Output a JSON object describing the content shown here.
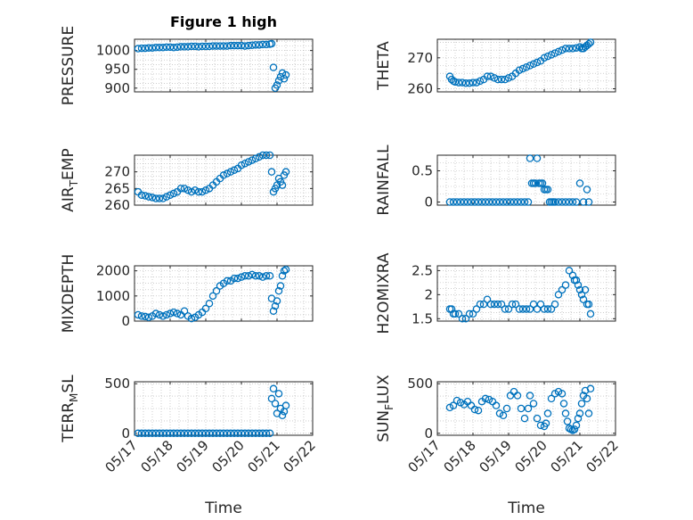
{
  "figure": {
    "title": "Figure 1 high",
    "marker_color": "#0072BD",
    "axis_color": "#262626",
    "grid_color": "#b0b0b0",
    "time_tick_labels": [
      "05/17",
      "05/18",
      "05/19",
      "05/20",
      "05/21",
      "05/22"
    ]
  },
  "chart_data": [
    {
      "type": "scatter",
      "title": "Figure 1 high",
      "ylabel": "PRESSURE",
      "xlabel": "",
      "xlim": [
        17,
        22
      ],
      "ylim": [
        890,
        1030
      ],
      "yticks": [
        900,
        950,
        1000
      ],
      "ytick_labels": [
        "900",
        "950",
        "1000"
      ],
      "grid": true,
      "x": [
        17.1,
        17.2,
        17.3,
        17.4,
        17.5,
        17.6,
        17.7,
        17.8,
        17.9,
        18.0,
        18.1,
        18.2,
        18.3,
        18.4,
        18.5,
        18.6,
        18.7,
        18.8,
        18.9,
        19.0,
        19.1,
        19.2,
        19.3,
        19.4,
        19.5,
        19.6,
        19.7,
        19.8,
        19.9,
        20.0,
        20.1,
        20.2,
        20.3,
        20.4,
        20.5,
        20.6,
        20.7,
        20.8,
        20.85,
        20.9,
        20.95,
        21.0,
        21.05,
        21.1,
        21.15,
        21.2,
        21.25
      ],
      "y": [
        1005,
        1006,
        1006,
        1007,
        1007,
        1008,
        1008,
        1008,
        1009,
        1009,
        1008,
        1009,
        1010,
        1010,
        1010,
        1011,
        1011,
        1010,
        1011,
        1011,
        1011,
        1012,
        1012,
        1012,
        1012,
        1012,
        1013,
        1013,
        1013,
        1013,
        1012,
        1013,
        1014,
        1015,
        1015,
        1016,
        1016,
        1017,
        1018,
        955,
        900,
        908,
        920,
        930,
        940,
        925,
        935
      ]
    },
    {
      "type": "scatter",
      "ylabel": "THETA",
      "xlabel": "",
      "xlim": [
        17,
        22
      ],
      "ylim": [
        259,
        276
      ],
      "yticks": [
        260,
        270
      ],
      "ytick_labels": [
        "260",
        "270"
      ],
      "grid": true,
      "x": [
        17.35,
        17.4,
        17.45,
        17.5,
        17.6,
        17.7,
        17.8,
        17.9,
        18.0,
        18.1,
        18.2,
        18.3,
        18.4,
        18.5,
        18.6,
        18.7,
        18.8,
        18.9,
        19.0,
        19.1,
        19.2,
        19.3,
        19.4,
        19.5,
        19.6,
        19.7,
        19.8,
        19.9,
        20.0,
        20.1,
        20.2,
        20.3,
        20.4,
        20.5,
        20.6,
        20.7,
        20.8,
        20.9,
        21.0,
        21.05,
        21.1,
        21.15,
        21.2,
        21.25,
        21.3
      ],
      "y": [
        264,
        263,
        262.5,
        262.2,
        262,
        262,
        261.8,
        261.8,
        262,
        262,
        262.5,
        263,
        264,
        264,
        263.5,
        263,
        263,
        263,
        263.5,
        264,
        265,
        266,
        266.5,
        267,
        267.5,
        268,
        268.5,
        269,
        270,
        270.5,
        271,
        271.5,
        272,
        272.5,
        273,
        273,
        273,
        273.2,
        273.5,
        273,
        273,
        273.5,
        274,
        274.5,
        275
      ]
    },
    {
      "type": "scatter",
      "ylabel": "AIR_TEMP",
      "xlabel": "",
      "xlim": [
        17,
        22
      ],
      "ylim": [
        260,
        275
      ],
      "yticks": [
        260,
        265,
        270
      ],
      "ytick_labels": [
        "260",
        "265",
        "270"
      ],
      "grid": true,
      "x": [
        17.1,
        17.2,
        17.3,
        17.4,
        17.5,
        17.6,
        17.7,
        17.8,
        17.9,
        18.0,
        18.1,
        18.2,
        18.3,
        18.4,
        18.5,
        18.6,
        18.7,
        18.8,
        18.9,
        19.0,
        19.1,
        19.2,
        19.3,
        19.4,
        19.5,
        19.6,
        19.7,
        19.8,
        19.9,
        20.0,
        20.1,
        20.2,
        20.3,
        20.4,
        20.5,
        20.6,
        20.7,
        20.8,
        20.85,
        20.9,
        20.95,
        21.0,
        21.05,
        21.1,
        21.15,
        21.2,
        21.25
      ],
      "y": [
        264,
        263,
        262.8,
        262.5,
        262.3,
        262,
        262,
        262,
        262.5,
        263,
        263.5,
        264,
        265,
        265,
        264.5,
        264,
        264.5,
        264,
        264,
        264.5,
        265,
        266,
        267,
        268,
        269,
        269.5,
        270,
        270.5,
        271,
        272,
        272.5,
        273,
        273.5,
        274,
        274.5,
        275,
        275,
        275,
        270,
        264,
        265,
        266,
        268,
        267,
        266,
        269,
        270
      ]
    },
    {
      "type": "scatter",
      "ylabel": "RAINFALL",
      "xlabel": "",
      "xlim": [
        17,
        22
      ],
      "ylim": [
        -0.05,
        0.75
      ],
      "yticks": [
        0,
        0.5
      ],
      "ytick_labels": [
        "0",
        "0.5"
      ],
      "grid": true,
      "x": [
        17.35,
        17.45,
        17.55,
        17.65,
        17.75,
        17.85,
        17.95,
        18.05,
        18.15,
        18.25,
        18.35,
        18.45,
        18.55,
        18.65,
        18.75,
        18.85,
        18.95,
        19.05,
        19.15,
        19.25,
        19.35,
        19.45,
        19.55,
        19.6,
        19.65,
        19.7,
        19.75,
        19.8,
        19.85,
        19.9,
        19.95,
        20.0,
        20.05,
        20.1,
        20.15,
        20.2,
        20.25,
        20.3,
        20.4,
        20.5,
        20.6,
        20.7,
        20.8,
        20.9,
        21.0,
        21.1,
        21.2,
        21.25
      ],
      "y": [
        0,
        0,
        0,
        0,
        0,
        0,
        0,
        0,
        0,
        0,
        0,
        0,
        0,
        0,
        0,
        0,
        0,
        0,
        0,
        0,
        0,
        0,
        0,
        0.7,
        0.3,
        0.3,
        0.3,
        0.7,
        0.3,
        0.3,
        0.3,
        0.2,
        0.2,
        0.2,
        0,
        0,
        0,
        0,
        0,
        0,
        0,
        0,
        0,
        0,
        0.3,
        0,
        0.2,
        0
      ]
    },
    {
      "type": "scatter",
      "ylabel": "MIXDEPTH",
      "xlabel": "",
      "xlim": [
        17,
        22
      ],
      "ylim": [
        0,
        2200
      ],
      "yticks": [
        0,
        1000,
        2000
      ],
      "ytick_labels": [
        "0",
        "1000",
        "2000"
      ],
      "grid": true,
      "x": [
        17.1,
        17.2,
        17.3,
        17.4,
        17.5,
        17.6,
        17.7,
        17.8,
        17.9,
        18.0,
        18.1,
        18.2,
        18.3,
        18.4,
        18.5,
        18.6,
        18.7,
        18.8,
        18.9,
        19.0,
        19.1,
        19.2,
        19.3,
        19.4,
        19.5,
        19.6,
        19.7,
        19.8,
        19.9,
        20.0,
        20.1,
        20.2,
        20.3,
        20.4,
        20.5,
        20.6,
        20.7,
        20.8,
        20.85,
        20.9,
        20.95,
        21.0,
        21.05,
        21.1,
        21.15,
        21.2,
        21.25
      ],
      "y": [
        250,
        200,
        180,
        150,
        200,
        300,
        250,
        200,
        250,
        300,
        350,
        300,
        250,
        400,
        200,
        100,
        150,
        250,
        350,
        500,
        700,
        1000,
        1200,
        1400,
        1500,
        1600,
        1600,
        1700,
        1700,
        1750,
        1800,
        1800,
        1850,
        1800,
        1800,
        1750,
        1800,
        1800,
        900,
        400,
        600,
        800,
        1200,
        1400,
        1800,
        2000,
        2050
      ]
    },
    {
      "type": "scatter",
      "ylabel": "H2OMIXRA",
      "xlabel": "",
      "xlim": [
        17,
        22
      ],
      "ylim": [
        1.45,
        2.6
      ],
      "yticks": [
        1.5,
        2,
        2.5
      ],
      "ytick_labels": [
        "1.5",
        "2",
        "2.5"
      ],
      "grid": true,
      "x": [
        17.35,
        17.4,
        17.45,
        17.5,
        17.6,
        17.7,
        17.8,
        17.9,
        18.0,
        18.1,
        18.2,
        18.3,
        18.4,
        18.5,
        18.6,
        18.7,
        18.8,
        18.9,
        19.0,
        19.1,
        19.2,
        19.3,
        19.4,
        19.5,
        19.6,
        19.7,
        19.8,
        19.9,
        20.0,
        20.1,
        20.2,
        20.3,
        20.4,
        20.5,
        20.6,
        20.7,
        20.8,
        20.85,
        20.9,
        20.95,
        21.0,
        21.05,
        21.1,
        21.15,
        21.2,
        21.25,
        21.3
      ],
      "y": [
        1.7,
        1.7,
        1.6,
        1.6,
        1.6,
        1.5,
        1.5,
        1.6,
        1.6,
        1.7,
        1.8,
        1.8,
        1.9,
        1.8,
        1.8,
        1.8,
        1.8,
        1.7,
        1.7,
        1.8,
        1.8,
        1.7,
        1.7,
        1.7,
        1.7,
        1.8,
        1.7,
        1.8,
        1.7,
        1.7,
        1.7,
        1.8,
        2.0,
        2.1,
        2.2,
        2.5,
        2.4,
        2.3,
        2.3,
        2.2,
        2.1,
        2.0,
        1.9,
        2.1,
        1.8,
        1.8,
        1.6
      ]
    },
    {
      "type": "scatter",
      "ylabel": "TERR_MSL",
      "xlabel": "Time",
      "xlim": [
        17,
        22
      ],
      "ylim": [
        -20,
        520
      ],
      "yticks": [
        0,
        500
      ],
      "ytick_labels": [
        "0",
        "500"
      ],
      "grid": true,
      "x": [
        17.1,
        17.2,
        17.3,
        17.4,
        17.5,
        17.6,
        17.7,
        17.8,
        17.9,
        18.0,
        18.1,
        18.2,
        18.3,
        18.4,
        18.5,
        18.6,
        18.7,
        18.8,
        18.9,
        19.0,
        19.1,
        19.2,
        19.3,
        19.4,
        19.5,
        19.6,
        19.7,
        19.8,
        19.9,
        20.0,
        20.1,
        20.2,
        20.3,
        20.4,
        20.5,
        20.6,
        20.7,
        20.8,
        20.85,
        20.9,
        20.95,
        21.0,
        21.05,
        21.1,
        21.15,
        21.2,
        21.25
      ],
      "y": [
        0,
        0,
        0,
        0,
        0,
        0,
        0,
        0,
        0,
        0,
        0,
        0,
        0,
        0,
        0,
        0,
        0,
        0,
        0,
        0,
        0,
        0,
        0,
        0,
        0,
        0,
        0,
        0,
        0,
        0,
        0,
        0,
        0,
        0,
        0,
        0,
        0,
        0,
        350,
        450,
        300,
        200,
        400,
        250,
        180,
        220,
        280
      ]
    },
    {
      "type": "scatter",
      "ylabel": "SUN_FLUX",
      "xlabel": "Time",
      "xlim": [
        17,
        22
      ],
      "ylim": [
        -20,
        520
      ],
      "yticks": [
        0,
        500
      ],
      "ytick_labels": [
        "0",
        "500"
      ],
      "grid": true,
      "x": [
        17.35,
        17.45,
        17.55,
        17.65,
        17.75,
        17.85,
        17.95,
        18.05,
        18.15,
        18.25,
        18.35,
        18.45,
        18.55,
        18.65,
        18.75,
        18.85,
        18.95,
        19.05,
        19.15,
        19.25,
        19.35,
        19.45,
        19.55,
        19.6,
        19.7,
        19.8,
        19.9,
        20.0,
        20.05,
        20.1,
        20.2,
        20.3,
        20.4,
        20.5,
        20.55,
        20.6,
        20.65,
        20.7,
        20.75,
        20.8,
        20.85,
        20.9,
        20.95,
        21.0,
        21.05,
        21.1,
        21.15,
        21.2,
        21.25,
        21.3
      ],
      "y": [
        260,
        280,
        330,
        310,
        290,
        320,
        280,
        240,
        230,
        320,
        350,
        340,
        320,
        280,
        200,
        180,
        250,
        380,
        420,
        380,
        250,
        150,
        250,
        380,
        300,
        150,
        80,
        70,
        100,
        200,
        350,
        400,
        420,
        400,
        300,
        200,
        120,
        50,
        40,
        30,
        40,
        80,
        150,
        200,
        300,
        380,
        430,
        350,
        200,
        450
      ]
    }
  ]
}
